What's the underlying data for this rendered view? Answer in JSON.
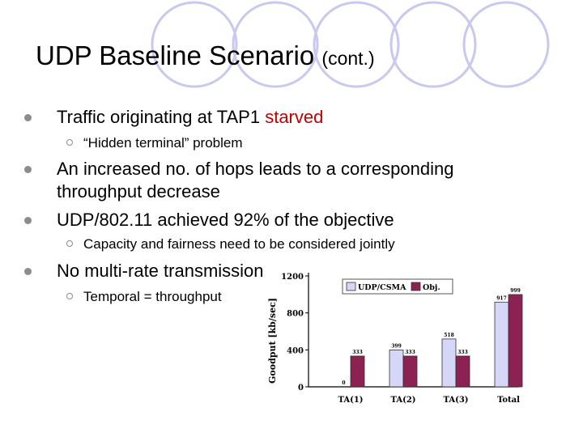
{
  "slide": {
    "title_main": "UDP Baseline Scenario",
    "title_small": "(cont.)",
    "bullets": [
      {
        "pre": "Traffic originating at TAP1 ",
        "highlight": "starved",
        "highlight_color": "#c00000"
      },
      {
        "line1": "An increased no. of hops leads to a corresponding",
        "line2": "throughput decrease"
      },
      {
        "text": "UDP/802.11 achieved 92% of the objective"
      },
      {
        "text": "No multi-rate transmission"
      }
    ],
    "subbullets": [
      {
        "text": "“Hidden terminal” problem"
      },
      {
        "text": "Capacity and fairness need to be considered jointly"
      },
      {
        "text": "Temporal = throughput"
      }
    ],
    "decor_color": "#c8c8f0"
  },
  "chart_data": {
    "type": "bar",
    "categories": [
      "TA(1)",
      "TA(2)",
      "TA(3)",
      "Total"
    ],
    "series": [
      {
        "name": "UDP/CSMA",
        "values": [
          0,
          399,
          518,
          917
        ],
        "color": "#d6d6f8"
      },
      {
        "name": "Obj.",
        "values": [
          333,
          333,
          333,
          999
        ],
        "color": "#8b2252"
      }
    ],
    "data_labels": [
      [
        "0",
        "399",
        "518",
        "917"
      ],
      [
        "333",
        "333",
        "333",
        "999"
      ]
    ],
    "ylabel": "Goodput [kb/sec]",
    "yticks": [
      0,
      400,
      800,
      1200
    ],
    "ylim": [
      0,
      1200
    ],
    "legend_position": "top"
  }
}
